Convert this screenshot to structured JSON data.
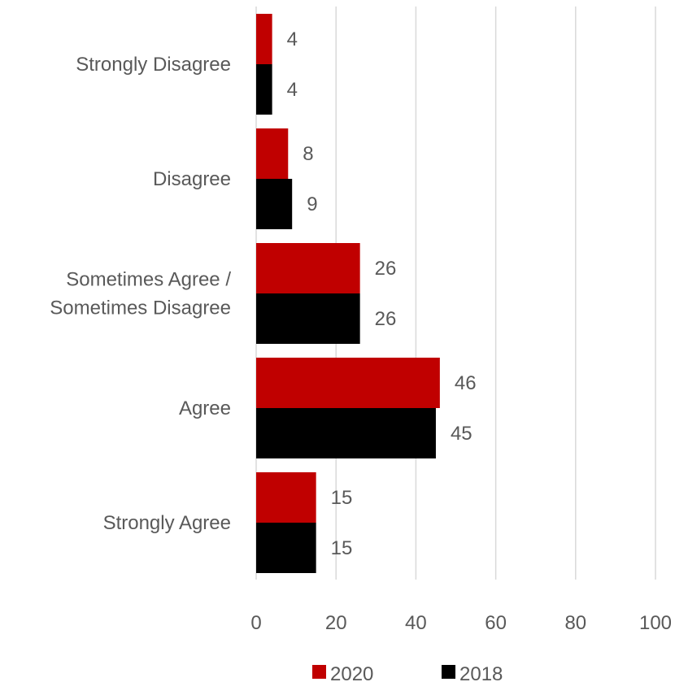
{
  "chart_data": {
    "type": "bar",
    "orientation": "horizontal",
    "categories": [
      "Strongly Disagree",
      "Disagree",
      "Sometimes Agree / Sometimes Disagree",
      "Agree",
      "Strongly Agree"
    ],
    "category_lines": [
      [
        "Strongly Disagree"
      ],
      [
        "Disagree"
      ],
      [
        "Sometimes Agree /",
        "Sometimes Disagree"
      ],
      [
        "Agree"
      ],
      [
        "Strongly Agree"
      ]
    ],
    "series": [
      {
        "name": "2020",
        "color": "#c00000",
        "values": [
          4,
          8,
          26,
          46,
          15
        ]
      },
      {
        "name": "2018",
        "color": "#000000",
        "values": [
          4,
          9,
          26,
          45,
          15
        ]
      }
    ],
    "xlim": [
      0,
      100
    ],
    "xticks": [
      0,
      20,
      40,
      60,
      80,
      100
    ],
    "grid": true,
    "legend_position": "bottom",
    "title": "",
    "xlabel": "",
    "ylabel": ""
  }
}
